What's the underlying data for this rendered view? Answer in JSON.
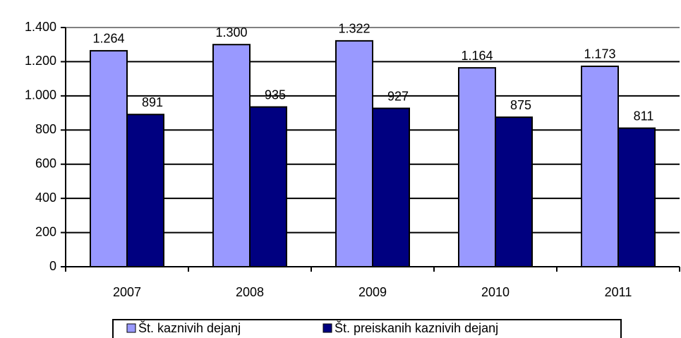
{
  "chart_data": {
    "type": "bar",
    "categories": [
      "2007",
      "2008",
      "2009",
      "2010",
      "2011"
    ],
    "series": [
      {
        "name": "Št. kaznivih dejanj",
        "color": "#9999ff",
        "values": [
          1264,
          1300,
          1322,
          1164,
          1173
        ],
        "value_labels": [
          "1.264",
          "1.300",
          "1.322",
          "1.164",
          "1.173"
        ]
      },
      {
        "name": "Št. preiskanih kaznivih dejanj",
        "color": "#000080",
        "values": [
          891,
          935,
          927,
          875,
          811
        ]
      }
    ],
    "ylim": [
      0,
      1400
    ],
    "yticks": [
      0,
      200,
      400,
      600,
      800,
      {
        "value": 1000,
        "label": "1.000"
      },
      {
        "value": 1200,
        "label": "1.200"
      },
      {
        "value": 1400,
        "label": "1.400"
      }
    ],
    "grid": true,
    "legend": "bottom"
  }
}
